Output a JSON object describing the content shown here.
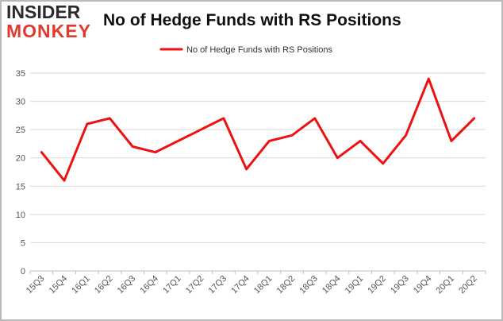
{
  "logo": {
    "line1": "INSIDER",
    "line2": "MONKEY"
  },
  "chart_data": {
    "type": "line",
    "title": "No of Hedge Funds with RS Positions",
    "xlabel": "",
    "ylabel": "",
    "categories": [
      "15Q3",
      "15Q4",
      "16Q1",
      "16Q2",
      "16Q3",
      "16Q4",
      "17Q1",
      "17Q2",
      "17Q3",
      "17Q4",
      "18Q1",
      "18Q2",
      "18Q3",
      "18Q4",
      "19Q1",
      "19Q2",
      "19Q3",
      "19Q4",
      "20Q1",
      "20Q2"
    ],
    "series": [
      {
        "name": "No of Hedge Funds with RS Positions",
        "values": [
          21,
          16,
          26,
          27,
          22,
          21,
          null,
          null,
          27,
          18,
          23,
          24,
          27,
          20,
          23,
          19,
          24,
          34,
          23,
          27
        ],
        "color": "#ee1111"
      }
    ],
    "ylim": [
      0,
      35
    ],
    "yticks": [
      0,
      5,
      10,
      15,
      20,
      25,
      30,
      35
    ],
    "grid": true,
    "legend": "top-center"
  }
}
